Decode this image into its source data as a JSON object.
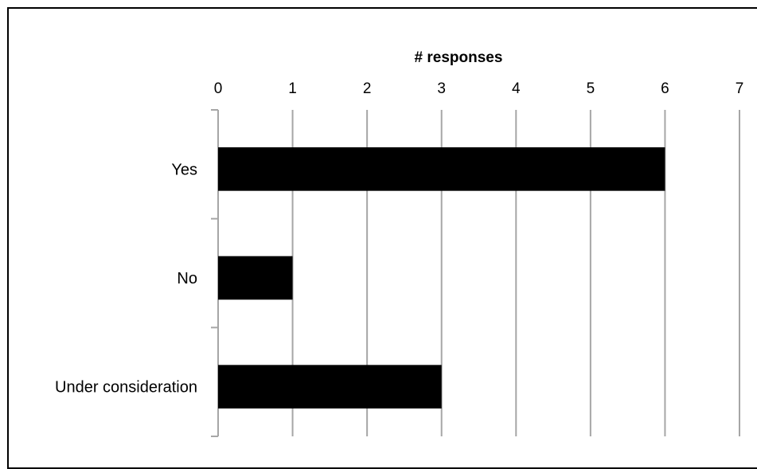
{
  "chart_data": {
    "type": "bar",
    "orientation": "horizontal",
    "categories": [
      "Yes",
      "No",
      "Under consideration"
    ],
    "values": [
      6,
      1,
      3
    ],
    "xlabel": "# responses",
    "x_axis_position": "top",
    "xlim": [
      0,
      7
    ],
    "x_ticks": [
      "0",
      "1",
      "2",
      "3",
      "4",
      "5",
      "6",
      "7"
    ],
    "grid": true,
    "bar_color": "#000000",
    "grid_color": "#a6a6a6"
  }
}
